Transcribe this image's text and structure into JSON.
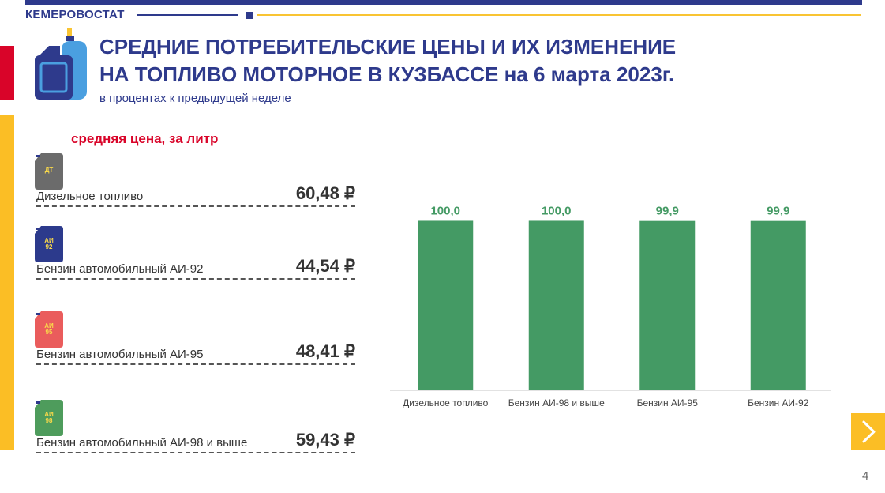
{
  "header": {
    "brand": "КЕМЕРОВОСТАТ",
    "title_line1": "СРЕДНИЕ ПОТРЕБИТЕЛЬСКИЕ ЦЕНЫ И ИХ ИЗМЕНЕНИЕ",
    "title_line2": "НА ТОПЛИВО МОТОРНОЕ В КУЗБАССЕ на 6 марта 2023г.",
    "subtitle": "в процентах к предыдущей неделе",
    "page_number": "4"
  },
  "colors": {
    "brand": "#2e3a8c",
    "accent_red": "#d90429",
    "accent_yellow": "#fbbe25",
    "bar": "#449a64"
  },
  "prices": {
    "heading": "средняя цена, за литр",
    "items": [
      {
        "canister_label": "ДТ",
        "canister_color": "#6b6b6b",
        "name": "Дизельное топливо",
        "price": "60,48 ₽"
      },
      {
        "canister_label": "АИ\n92",
        "canister_color": "#2c3a8c",
        "name": "Бензин автомобильный АИ-92",
        "price": "44,54 ₽"
      },
      {
        "canister_label": "АИ\n95",
        "canister_color": "#ea5c5c",
        "name": "Бензин автомобильный АИ-95",
        "price": "48,41 ₽"
      },
      {
        "canister_label": "АИ\n98",
        "canister_color": "#4e9c5c",
        "name": "Бензин автомобильный АИ-98 и выше",
        "price": "59,43 ₽"
      }
    ]
  },
  "chart_data": {
    "type": "bar",
    "title": "",
    "xlabel": "",
    "ylabel": "",
    "categories": [
      "Дизельное топливо",
      "Бензин АИ-98 и выше",
      "Бензин АИ-95",
      "Бензин АИ-92"
    ],
    "values": [
      100.0,
      100.0,
      99.9,
      99.9
    ],
    "labels": [
      "100,0",
      "100,0",
      "99,9",
      "99,9"
    ],
    "ylim": [
      0,
      110
    ],
    "grid": false,
    "legend": "none"
  }
}
